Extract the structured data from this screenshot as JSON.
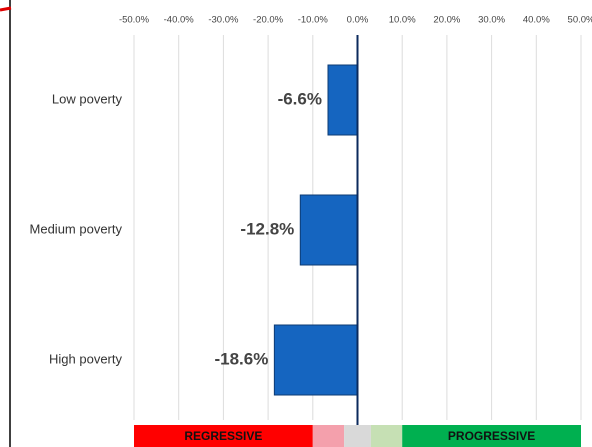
{
  "chart_data": {
    "type": "bar",
    "orientation": "horizontal",
    "categories": [
      "Low poverty",
      "Medium poverty",
      "High poverty"
    ],
    "values": [
      -6.6,
      -12.8,
      -18.6
    ],
    "value_labels": [
      "-6.6%",
      "-12.8%",
      "-18.6%"
    ],
    "color": "#1565c0",
    "xlim": [
      -50,
      50
    ],
    "xticks": [
      {
        "value": -50,
        "label": "-50.0%"
      },
      {
        "value": -40,
        "label": "-40.0%"
      },
      {
        "value": -30,
        "label": "-30.0%"
      },
      {
        "value": -20,
        "label": "-20.0%"
      },
      {
        "value": -10,
        "label": "-10.0%"
      },
      {
        "value": 0,
        "label": "0.0%"
      },
      {
        "value": 10,
        "label": "10.0%"
      },
      {
        "value": 20,
        "label": "20.0%"
      },
      {
        "value": 30,
        "label": "30.0%"
      },
      {
        "value": 40,
        "label": "40.0%"
      },
      {
        "value": 50,
        "label": "50.0%"
      }
    ],
    "grid": true,
    "zero_line_color": "#0b2a5c",
    "bands": [
      {
        "from": -50,
        "to": -10,
        "color": "#ff0000",
        "label": "REGRESSIVE"
      },
      {
        "from": -10,
        "to": -3,
        "color": "#f4a0ac"
      },
      {
        "from": -3,
        "to": 3,
        "color": "#d9d9d9"
      },
      {
        "from": 3,
        "to": 10,
        "color": "#c6e0b4"
      },
      {
        "from": 10,
        "to": 50,
        "color": "#00b050",
        "label": "PROGRESSIVE"
      }
    ]
  }
}
